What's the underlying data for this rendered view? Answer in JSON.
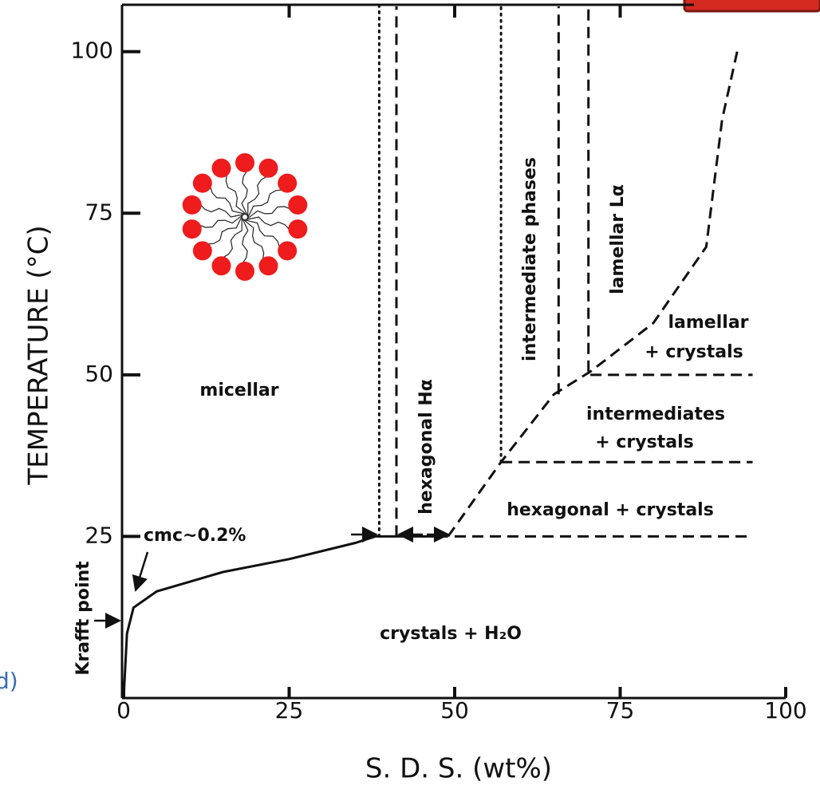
{
  "chart_data": {
    "type": "line",
    "corner_label": "d)",
    "x_label": "S. D. S. (wt%)",
    "y_label": "TEMPERATURE (°C)",
    "xlim": [
      0,
      100
    ],
    "ylim": [
      0,
      107
    ],
    "xticks": [
      0,
      25,
      50,
      75,
      100
    ],
    "yticks": [
      25,
      50,
      75,
      100
    ],
    "series": [
      {
        "style": "solid",
        "color": "#111111",
        "x": [
          0,
          0.5,
          1.5,
          5,
          15,
          25,
          35,
          38,
          49
        ],
        "values": [
          0,
          10,
          14,
          16.5,
          19.5,
          21.5,
          24,
          25,
          25
        ]
      },
      {
        "style": "dashed",
        "color": "#111111",
        "x": [
          49,
          57,
          65,
          70.5,
          80,
          88,
          90.4,
          92.8
        ],
        "values": [
          25,
          36.5,
          47,
          50.5,
          58,
          69.8,
          89.5,
          100.6
        ]
      },
      {
        "style": "dashed",
        "color": "#111111",
        "x": [
          50,
          95
        ],
        "values": [
          25,
          25
        ]
      },
      {
        "style": "dashed",
        "color": "#111111",
        "x": [
          57,
          95
        ],
        "values": [
          36.5,
          36.5
        ]
      },
      {
        "style": "dashed",
        "color": "#111111",
        "x": [
          70.5,
          95
        ],
        "values": [
          50,
          50
        ]
      },
      {
        "style": "dotted",
        "color": "#111111",
        "x": [
          38.6,
          38.6
        ],
        "values": [
          25,
          107
        ]
      },
      {
        "style": "dashed",
        "color": "#111111",
        "x": [
          41.2,
          41.2
        ],
        "values": [
          25,
          107
        ]
      },
      {
        "style": "dotted",
        "color": "#111111",
        "x": [
          57,
          57
        ],
        "values": [
          36.5,
          107
        ]
      },
      {
        "style": "dashed",
        "color": "#111111",
        "x": [
          65.7,
          65.7
        ],
        "values": [
          47,
          107
        ]
      },
      {
        "style": "dashed",
        "color": "#111111",
        "x": [
          70.2,
          70.2
        ],
        "values": [
          50.5,
          107
        ]
      }
    ],
    "annotations": [
      "micellar",
      "hexagonal Hα",
      "intermediate phases",
      "lamellar Lα",
      "lamellar",
      "+ crystals",
      "intermediates",
      "+ crystals",
      "hexagonal + crystals",
      "crystals + H₂O",
      "cmc~0.2%",
      "Krafft point"
    ]
  }
}
